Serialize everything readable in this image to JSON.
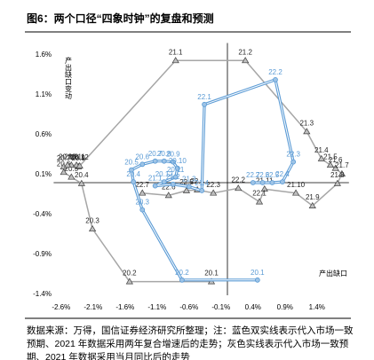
{
  "title": "图6：两个口径“四象时钟”的复盘和预测",
  "note": "数据来源：万得，国信证券经济研究所整理；注：蓝色双实线表示代入市场一致预期、2021 年数据采用两年复合增速后的走势；灰色实线表示代入市场一致预期、2021 年数据采用当月同比后的走势",
  "chart_data": {
    "type": "line",
    "x_label": "产出缺口",
    "y_label": "产出缺口变动",
    "xlim": [
      -2.8,
      1.9
    ],
    "ylim": [
      -1.5,
      1.75
    ],
    "xticks": [
      {
        "value": -2.6,
        "label": "-2.6%"
      },
      {
        "value": -2.1,
        "label": "-2.1%"
      },
      {
        "value": -1.6,
        "label": "-1.6%"
      },
      {
        "value": -1.1,
        "label": "-1.1%"
      },
      {
        "value": -0.6,
        "label": "-0.6%"
      },
      {
        "value": -0.1,
        "label": "-0.1%"
      },
      {
        "value": 0.4,
        "label": "0.4%"
      },
      {
        "value": 0.9,
        "label": "0.9%"
      },
      {
        "value": 1.4,
        "label": "1.4%"
      }
    ],
    "yticks": [
      {
        "value": 1.6,
        "label": "1.6%"
      },
      {
        "value": 1.1,
        "label": "1.1%"
      },
      {
        "value": 0.6,
        "label": "0.6%"
      },
      {
        "value": 0.1,
        "label": "0.1%"
      },
      {
        "value": -0.4,
        "label": "-0.4%"
      },
      {
        "value": -0.9,
        "label": "-0.9%"
      },
      {
        "value": -1.4,
        "label": "-1.4%"
      }
    ],
    "series": [
      {
        "color": "#a6a6a6",
        "marker": "triangle",
        "labels": [
          "20.1",
          "20.2",
          "20.3",
          "20.4",
          "20.5",
          "20.6",
          "20.7",
          "20.8",
          "20.9",
          "20.10",
          "20.11",
          "20.12",
          "21.1",
          "21.2",
          "21.3",
          "21.4",
          "21.5",
          "21.6",
          "21.7",
          "21.8",
          "21.9",
          "21.10",
          "21.11",
          "22.1",
          "22.2",
          "22.3",
          "22.4",
          "22.5",
          "22.6",
          "22.7"
        ],
        "x": [
          -0.25,
          -1.53,
          -2.11,
          -2.28,
          -2.44,
          -2.56,
          -2.56,
          -2.44,
          -2.33,
          -2.5,
          -2.36,
          -2.31,
          -0.81,
          0.28,
          1.24,
          1.47,
          1.61,
          1.69,
          1.79,
          1.72,
          1.33,
          1.07,
          0.58,
          0.5,
          0.17,
          -0.22,
          -0.47,
          -0.64,
          -0.92,
          -1.33
        ],
        "values": [
          -1.24,
          -1.24,
          -0.58,
          -0.01,
          0.07,
          0.13,
          0.2,
          0.22,
          0.2,
          0.22,
          0.22,
          0.21,
          1.53,
          1.53,
          0.64,
          0.3,
          0.22,
          0.18,
          0.11,
          -0.01,
          -0.29,
          -0.13,
          -0.08,
          -0.24,
          -0.07,
          -0.13,
          -0.09,
          -0.1,
          -0.16,
          -0.13
        ]
      },
      {
        "color": "#5b9bd5",
        "marker": "circle",
        "labels": [
          "20.1",
          "20.2",
          "20.3",
          "20.4",
          "20.5",
          "20.6",
          "20.7",
          "20.8",
          "20.9",
          "20.10",
          "20.11",
          "20.12",
          "21.1",
          "21.2",
          "21.3",
          "21.4",
          "22.1",
          "22.2",
          "22.3",
          "22.4",
          "22.5",
          "22.6",
          "22.7"
        ],
        "x": [
          0.47,
          -0.71,
          -1.33,
          -1.47,
          -1.5,
          -1.33,
          -1.13,
          -0.99,
          -0.85,
          -0.78,
          -0.81,
          -0.99,
          -1.13,
          -0.85,
          -0.6,
          -0.4,
          -0.36,
          0.75,
          1.03,
          0.86,
          0.7,
          0.55,
          0.4
        ],
        "values": [
          -1.22,
          -1.22,
          -0.34,
          0.01,
          0.16,
          0.23,
          0.27,
          0.27,
          0.26,
          0.18,
          0.07,
          0.01,
          -0.04,
          -0.02,
          -0.05,
          -0.1,
          0.98,
          1.29,
          0.26,
          0.01,
          0.0,
          0.0,
          0.0
        ]
      }
    ]
  }
}
